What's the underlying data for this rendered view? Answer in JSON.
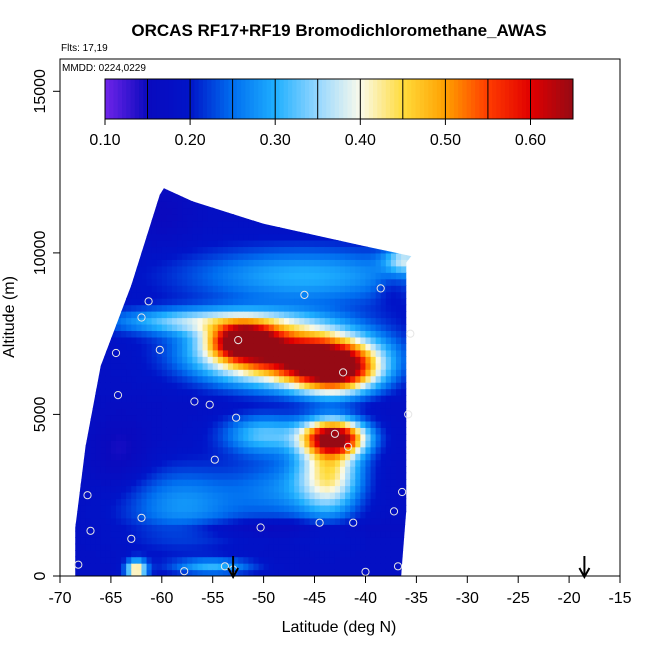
{
  "chart_data": {
    "type": "heatmap",
    "title": "ORCAS RF17+RF19 Bromodichloromethane_AWAS",
    "annotations": [
      "Flts: 17,19",
      "MMDD: 0224,0229"
    ],
    "xlabel": "Latitude (deg N)",
    "ylabel": "Altitude (m)",
    "xlim": [
      -70,
      -15
    ],
    "ylim": [
      0,
      16000
    ],
    "x_ticks": [
      -70,
      -65,
      -60,
      -55,
      -50,
      -45,
      -40,
      -35,
      -30,
      -25,
      -20,
      -15
    ],
    "y_ticks": [
      0,
      5000,
      10000,
      15000
    ],
    "colorbar": {
      "range": [
        0.1,
        0.65
      ],
      "ticks": [
        0.1,
        0.2,
        0.3,
        0.4,
        0.5,
        0.6
      ],
      "tick_labels": [
        "0.10",
        "0.20",
        "0.30",
        "0.40",
        "0.50",
        "0.60"
      ],
      "boundaries": [
        0.1,
        0.15,
        0.2,
        0.25,
        0.3,
        0.35,
        0.4,
        0.45,
        0.5,
        0.55,
        0.6,
        0.65
      ],
      "placement": "top-inside"
    },
    "field": {
      "background": 0.18,
      "blobs": [
        {
          "lat": -48,
          "alt": 6900,
          "dlat": 8,
          "dalt": 900,
          "value": 0.62
        },
        {
          "lat": -43,
          "alt": 6400,
          "dlat": 4,
          "dalt": 700,
          "value": 0.6
        },
        {
          "lat": -52,
          "alt": 7300,
          "dlat": 3,
          "dalt": 500,
          "value": 0.55
        },
        {
          "lat": -43,
          "alt": 4300,
          "dlat": 3,
          "dalt": 500,
          "value": 0.6
        },
        {
          "lat": -43.5,
          "alt": 3300,
          "dlat": 3,
          "dalt": 1300,
          "value": 0.42
        },
        {
          "lat": -56,
          "alt": 7900,
          "dlat": 9,
          "dalt": 400,
          "value": 0.34
        },
        {
          "lat": -46,
          "alt": 9300,
          "dlat": 12,
          "dalt": 900,
          "value": 0.3
        },
        {
          "lat": -36,
          "alt": 9800,
          "dlat": 2,
          "dalt": 400,
          "value": 0.34
        },
        {
          "lat": -50,
          "alt": 4400,
          "dlat": 4,
          "dalt": 600,
          "value": 0.32
        },
        {
          "lat": -58,
          "alt": 2200,
          "dlat": 6,
          "dalt": 1200,
          "value": 0.28
        },
        {
          "lat": -48,
          "alt": 2700,
          "dlat": 5,
          "dalt": 1000,
          "value": 0.26
        },
        {
          "lat": -50,
          "alt": 1500,
          "dlat": 10,
          "dalt": 250,
          "value": 0.13
        },
        {
          "lat": -60,
          "alt": 11300,
          "dlat": 3,
          "dalt": 1000,
          "value": 0.15
        },
        {
          "lat": -64,
          "alt": 3800,
          "dlat": 3,
          "dalt": 1200,
          "value": 0.14
        },
        {
          "lat": -37.5,
          "alt": 8900,
          "dlat": 1.5,
          "dalt": 500,
          "value": 0.15
        },
        {
          "lat": -45,
          "alt": 5300,
          "dlat": 14,
          "dalt": 300,
          "value": 0.17
        },
        {
          "lat": -62.5,
          "alt": 200,
          "dlat": 1,
          "dalt": 300,
          "value": 0.45
        },
        {
          "lat": -55,
          "alt": 300,
          "dlat": 4,
          "dalt": 250,
          "value": 0.3
        }
      ],
      "envelope": [
        [
          -68.5,
          0
        ],
        [
          -36.5,
          0
        ],
        [
          -36.0,
          2000
        ],
        [
          -36.0,
          9700
        ],
        [
          -35.5,
          9900
        ],
        [
          -40,
          10200
        ],
        [
          -50,
          10900
        ],
        [
          -57,
          11600
        ],
        [
          -59.8,
          12000
        ],
        [
          -60.2,
          11800
        ],
        [
          -63,
          9000
        ],
        [
          -66,
          6500
        ],
        [
          -67.5,
          4000
        ],
        [
          -68.5,
          1500
        ]
      ]
    },
    "sample_points": [
      {
        "lat": -61.3,
        "alt": 8500
      },
      {
        "lat": -62.0,
        "alt": 8000
      },
      {
        "lat": -64.5,
        "alt": 6900
      },
      {
        "lat": -60.2,
        "alt": 7000
      },
      {
        "lat": -52.5,
        "alt": 7300
      },
      {
        "lat": -46.0,
        "alt": 8700
      },
      {
        "lat": -38.5,
        "alt": 8900
      },
      {
        "lat": -35.6,
        "alt": 7500
      },
      {
        "lat": -42.2,
        "alt": 6300
      },
      {
        "lat": -64.3,
        "alt": 5600
      },
      {
        "lat": -56.8,
        "alt": 5400
      },
      {
        "lat": -55.3,
        "alt": 5300
      },
      {
        "lat": -52.7,
        "alt": 4900
      },
      {
        "lat": -43.0,
        "alt": 4400
      },
      {
        "lat": -41.7,
        "alt": 4000
      },
      {
        "lat": -35.8,
        "alt": 5000
      },
      {
        "lat": -54.8,
        "alt": 3600
      },
      {
        "lat": -67.3,
        "alt": 2500
      },
      {
        "lat": -36.4,
        "alt": 2600
      },
      {
        "lat": -37.2,
        "alt": 2000
      },
      {
        "lat": -62.0,
        "alt": 1800
      },
      {
        "lat": -44.5,
        "alt": 1650
      },
      {
        "lat": -41.2,
        "alt": 1650
      },
      {
        "lat": -50.3,
        "alt": 1500
      },
      {
        "lat": -67.0,
        "alt": 1400
      },
      {
        "lat": -63.0,
        "alt": 1150
      },
      {
        "lat": -68.2,
        "alt": 350
      },
      {
        "lat": -57.8,
        "alt": 150
      },
      {
        "lat": -53.8,
        "alt": 300
      },
      {
        "lat": -53.0,
        "alt": 200
      },
      {
        "lat": -40.0,
        "alt": 130
      },
      {
        "lat": -36.8,
        "alt": 300
      }
    ],
    "markers": [
      {
        "type": "arrow-down",
        "lat": -53.0
      },
      {
        "type": "arrow-down",
        "lat": -18.5
      }
    ]
  }
}
